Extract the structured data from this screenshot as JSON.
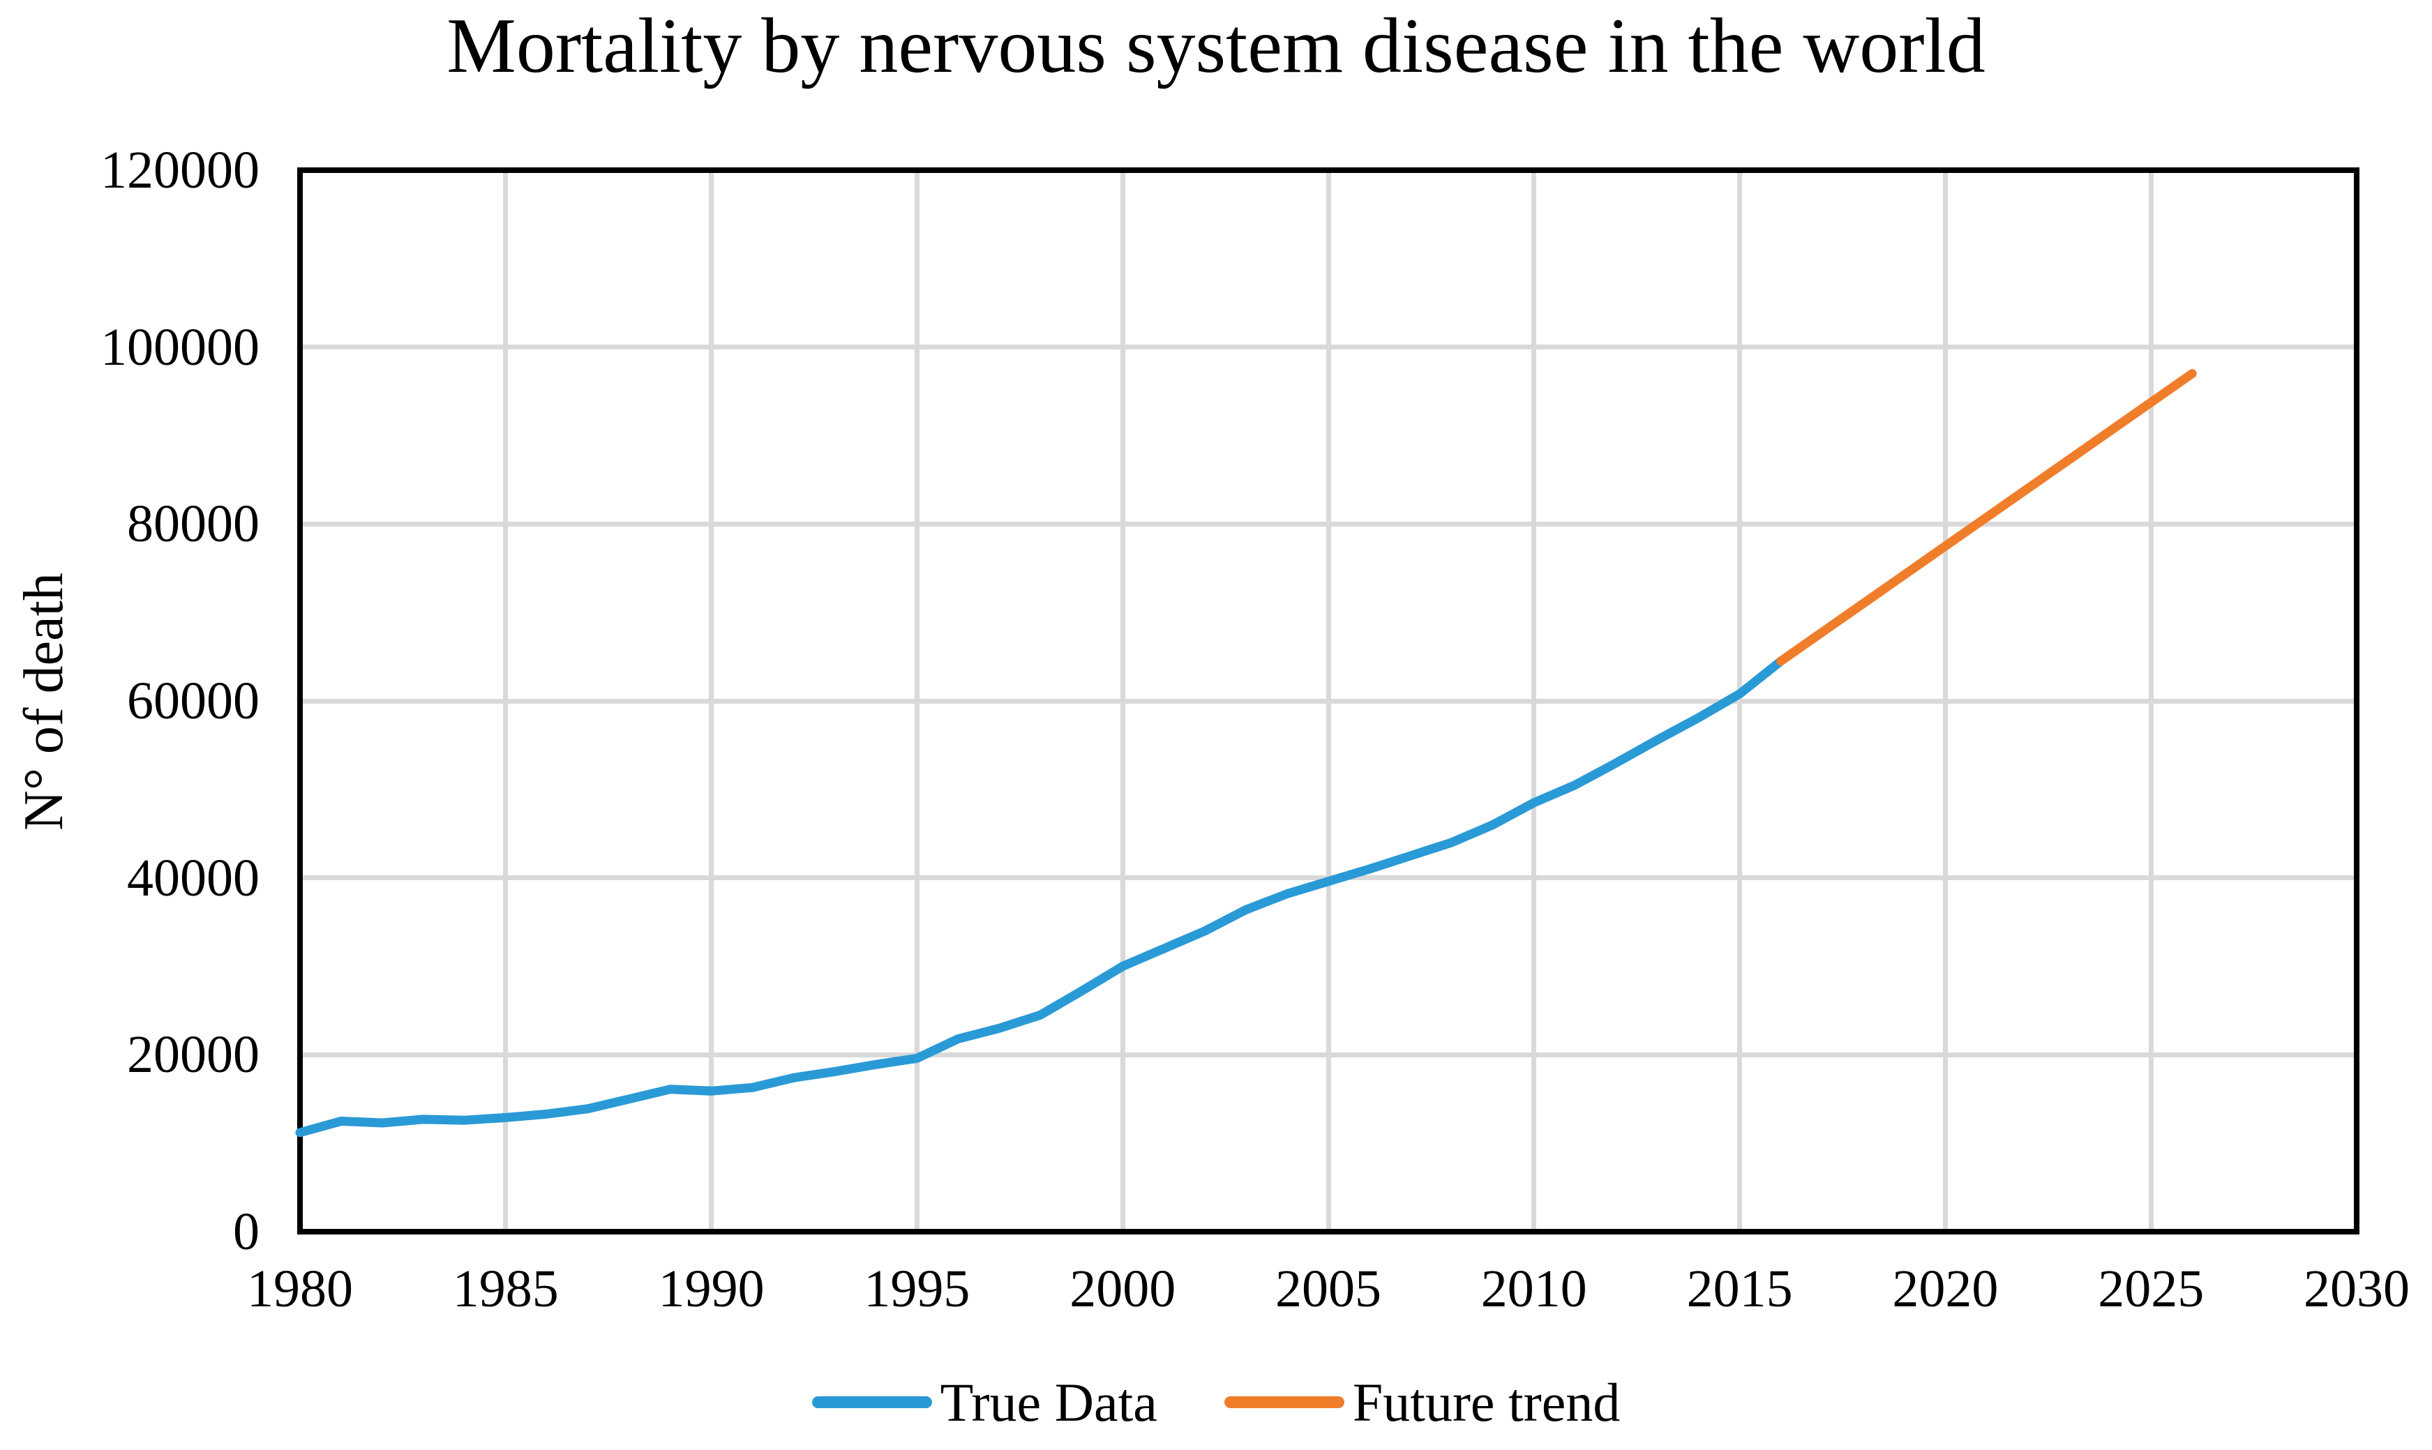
{
  "chart_data": {
    "type": "line",
    "title": "Mortality by nervous system disease in the world",
    "xlabel": "",
    "ylabel": "N° of death",
    "xlim": [
      1980,
      2030
    ],
    "ylim": [
      0,
      120000
    ],
    "x_ticks": [
      1980,
      1985,
      1990,
      1995,
      2000,
      2005,
      2010,
      2015,
      2020,
      2025,
      2030
    ],
    "y_ticks": [
      0,
      20000,
      40000,
      60000,
      80000,
      100000,
      120000
    ],
    "grid": true,
    "legend_position": "bottom",
    "series": [
      {
        "name": "True Data",
        "color": "#2A9AD6",
        "x": [
          1980,
          1981,
          1982,
          1983,
          1984,
          1985,
          1986,
          1987,
          1988,
          1989,
          1990,
          1991,
          1992,
          1993,
          1994,
          1995,
          1996,
          1997,
          1998,
          1999,
          2000,
          2001,
          2002,
          2003,
          2004,
          2005,
          2006,
          2007,
          2008,
          2009,
          2010,
          2011,
          2012,
          2013,
          2014,
          2015,
          2016
        ],
        "values": [
          11200,
          12500,
          12300,
          12700,
          12600,
          12900,
          13300,
          13900,
          15000,
          16100,
          15900,
          16300,
          17400,
          18100,
          18900,
          19600,
          21800,
          23000,
          24500,
          27200,
          30000,
          32000,
          34000,
          36400,
          38200,
          39600,
          41000,
          42500,
          44000,
          46000,
          48500,
          50500,
          53000,
          55600,
          58100,
          60800,
          64500
        ]
      },
      {
        "name": "Future trend",
        "color": "#F07D2A",
        "x": [
          2016,
          2017,
          2018,
          2019,
          2020,
          2021,
          2022,
          2023,
          2024,
          2025,
          2026
        ],
        "values": [
          64500,
          67750,
          71000,
          74250,
          77500,
          80750,
          84000,
          87250,
          90500,
          93750,
          97000
        ]
      }
    ]
  },
  "colors": {
    "background": "#FFFFFF",
    "gridline": "#D9D9D9",
    "axis": "#000000",
    "text": "#000000"
  }
}
